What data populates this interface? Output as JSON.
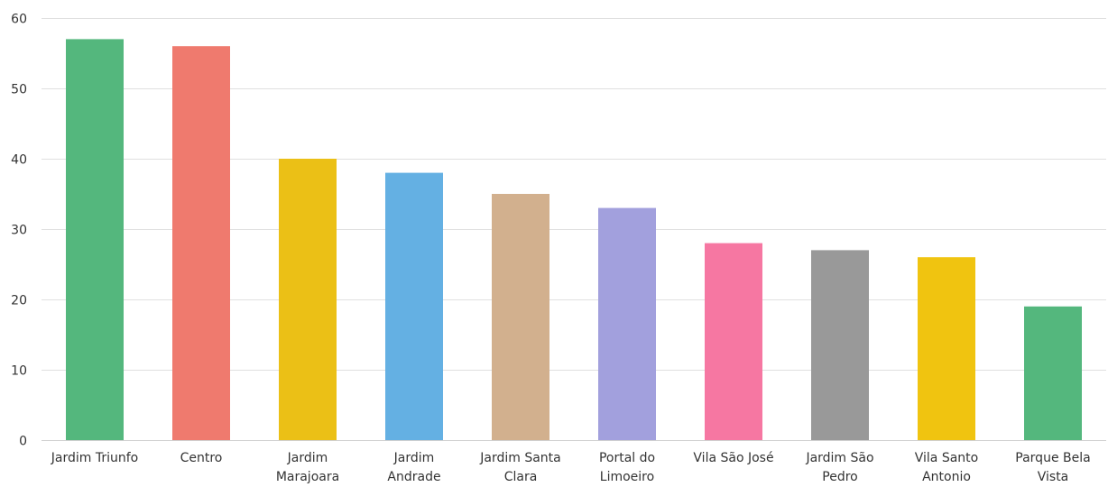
{
  "chart_data": {
    "type": "bar",
    "title": "",
    "xlabel": "",
    "ylabel": "",
    "ylim": [
      0,
      60
    ],
    "yticks": [
      0,
      10,
      20,
      30,
      40,
      50,
      60
    ],
    "grid": true,
    "legend": "none",
    "categories": [
      "Jardim Triunfo",
      "Centro",
      "Jardim Marajoara",
      "Jardim Andrade",
      "Jardim Santa Clara",
      "Portal do Limoeiro",
      "Vila São José",
      "Jardim São Pedro",
      "Vila Santo Antonio",
      "Parque Bela Vista"
    ],
    "category_label_lines": [
      [
        "Jardim Triunfo"
      ],
      [
        "Centro"
      ],
      [
        "Jardim",
        "Marajoara"
      ],
      [
        "Jardim",
        "Andrade"
      ],
      [
        "Jardim Santa",
        "Clara"
      ],
      [
        "Portal do",
        "Limoeiro"
      ],
      [
        "Vila São José"
      ],
      [
        "Jardim São",
        "Pedro"
      ],
      [
        "Vila Santo",
        "Antonio"
      ],
      [
        "Parque Bela",
        "Vista"
      ]
    ],
    "values": [
      57,
      56,
      40,
      38,
      35,
      33,
      28,
      27,
      26,
      19
    ],
    "colors": [
      "#54b77d",
      "#ef7a6e",
      "#ebc016",
      "#64b0e3",
      "#d2b08e",
      "#a2a0dd",
      "#f677a2",
      "#999999",
      "#f0c410",
      "#54b77d"
    ]
  }
}
